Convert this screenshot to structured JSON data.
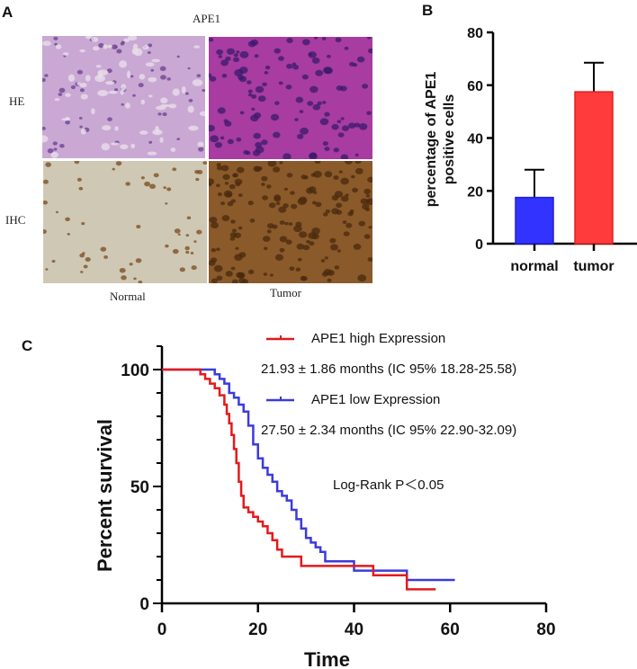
{
  "panel_a": {
    "letter": "A",
    "title": "APE1",
    "row_labels": [
      "HE",
      "IHC"
    ],
    "col_labels": [
      "Normal",
      "Tumor"
    ],
    "images": [
      {
        "name": "he-normal",
        "base": "#c9a8d4",
        "dot": "#6a3f8e"
      },
      {
        "name": "he-tumor",
        "base": "#a83ca0",
        "dot": "#3a1a6e"
      },
      {
        "name": "ihc-normal",
        "base": "#cfc8b4",
        "dot": "#7a4a1e"
      },
      {
        "name": "ihc-tumor",
        "base": "#8a5a2a",
        "dot": "#4a2a0e"
      }
    ]
  },
  "panel_b": {
    "letter": "B"
  },
  "panel_c": {
    "letter": "C",
    "legend": [
      {
        "label": "APE1 high Expression",
        "color": "#e31a1c",
        "stat": "21.93 ± 1.86 months (IC 95% 18.28-25.58)"
      },
      {
        "label": "APE1 low Expression",
        "color": "#3b3bdb",
        "stat": "27.50 ± 2.34 months (IC 95% 22.90-32.09)"
      }
    ],
    "annotation": "Log-Rank P＜0.05"
  },
  "chart_data": [
    {
      "type": "bar",
      "title": "",
      "categories": [
        "normal",
        "tumor"
      ],
      "values": [
        17.5,
        57.5
      ],
      "error_upper": [
        28,
        68.5
      ],
      "colors": [
        "#3333ff",
        "#ff3b3b"
      ],
      "xlabel": "",
      "ylabel": "percentage of APE1 positive cells",
      "ylim": [
        0,
        80
      ],
      "yticks": [
        0,
        20,
        40,
        60,
        80
      ],
      "grid": false
    },
    {
      "type": "line",
      "subtype": "kaplan-meier",
      "title": "",
      "xlabel": "Time",
      "ylabel": "Percent survival",
      "xlim": [
        0,
        80
      ],
      "ylim": [
        0,
        100
      ],
      "xticks": [
        0,
        20,
        40,
        60,
        80
      ],
      "yticks": [
        0,
        50,
        100
      ],
      "grid": false,
      "legend_position": "top-right",
      "series": [
        {
          "name": "APE1 high Expression",
          "color": "#e31a1c",
          "x": [
            0,
            8,
            9,
            10,
            11,
            12,
            13,
            13.5,
            14,
            14.5,
            15,
            15.5,
            16,
            16.5,
            17,
            18,
            19,
            20,
            21,
            22,
            23,
            24,
            25,
            26,
            28,
            29,
            33,
            38,
            44,
            47,
            51,
            57
          ],
          "y": [
            100,
            98,
            96,
            94,
            92,
            89,
            85,
            81,
            77,
            72,
            66,
            60,
            52,
            46,
            41,
            39,
            37,
            35,
            33,
            30,
            27,
            23,
            20,
            20,
            20,
            16,
            16,
            16,
            12,
            12,
            6,
            6
          ]
        },
        {
          "name": "APE1 low Expression",
          "color": "#3b3bdb",
          "x": [
            0,
            11,
            12,
            13,
            14,
            15,
            16,
            17,
            18,
            19,
            20,
            21,
            22,
            23,
            24,
            25,
            26,
            27,
            28,
            29,
            30,
            31,
            32,
            33,
            34,
            38,
            40,
            50,
            51,
            61
          ],
          "y": [
            100,
            98,
            96,
            94,
            90,
            88,
            85,
            82,
            76,
            68,
            62,
            58,
            55,
            52,
            48,
            46,
            44,
            40,
            36,
            32,
            28,
            26,
            24,
            22,
            18,
            18,
            14,
            14,
            10,
            10
          ]
        }
      ],
      "annotations": [
        "21.93 ± 1.86 months (IC 95% 18.28-25.58)",
        "27.50 ± 2.34 months (IC 95% 22.90-32.09)",
        "Log-Rank P＜0.05"
      ]
    }
  ]
}
